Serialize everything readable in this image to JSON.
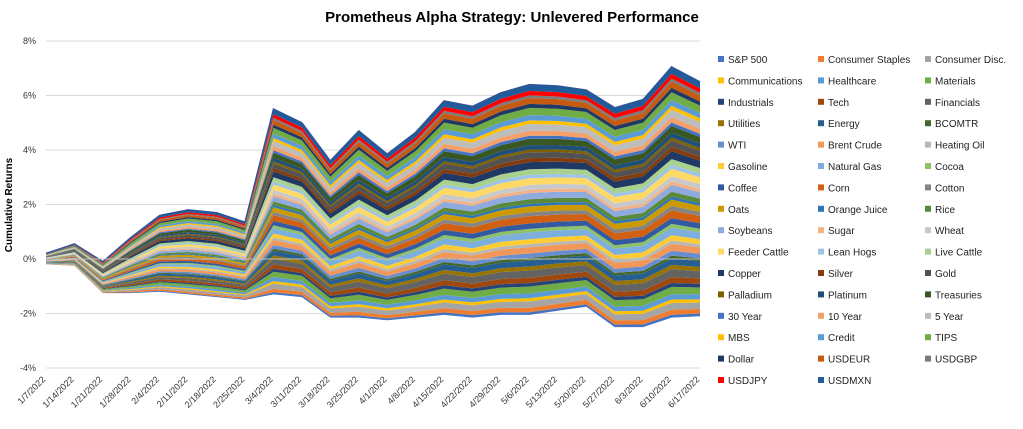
{
  "chart_data": {
    "type": "area",
    "title": "Prometheus Alpha Strategy: Unlevered Performance",
    "xlabel": "",
    "ylabel": "Cumulative Returns",
    "ylim": [
      -4,
      8
    ],
    "yticks": [
      "-4%",
      "-2%",
      "0%",
      "2%",
      "4%",
      "6%",
      "8%"
    ],
    "grid": true,
    "legend_position": "right",
    "x": [
      "1/7/2022",
      "1/14/2022",
      "1/21/2022",
      "1/28/2022",
      "2/4/2022",
      "2/11/2022",
      "2/18/2022",
      "2/25/2022",
      "3/4/2022",
      "3/11/2022",
      "3/18/2022",
      "3/25/2022",
      "4/1/2022",
      "4/8/2022",
      "4/15/2022",
      "4/22/2022",
      "4/29/2022",
      "5/6/2022",
      "5/13/2022",
      "5/20/2022",
      "5/27/2022",
      "6/3/2022",
      "6/10/2022",
      "6/17/2022"
    ],
    "total": [
      0.2,
      0.55,
      -0.1,
      0.8,
      1.6,
      1.8,
      1.7,
      1.35,
      5.5,
      5.0,
      3.6,
      4.7,
      3.85,
      4.65,
      5.8,
      5.6,
      6.1,
      6.4,
      6.35,
      6.2,
      5.55,
      5.85,
      7.05,
      6.5
    ],
    "min": [
      -0.2,
      -0.25,
      -1.25,
      -1.25,
      -1.2,
      -1.3,
      -1.4,
      -1.5,
      -1.3,
      -1.4,
      -2.15,
      -2.15,
      -2.25,
      -2.15,
      -2.05,
      -2.15,
      -2.05,
      -2.05,
      -1.9,
      -1.75,
      -2.5,
      -2.5,
      -2.15,
      -2.1
    ],
    "series_names": [
      "S&P 500",
      "Consumer Staples",
      "Consumer Disc.",
      "Communications",
      "Healthcare",
      "Materials",
      "Industrials",
      "Tech",
      "Financials",
      "Utilities",
      "Energy",
      "BCOMTR",
      "WTI",
      "Brent Crude",
      "Heating Oil",
      "Gasoline",
      "Natural Gas",
      "Cocoa",
      "Coffee",
      "Corn",
      "Cotton",
      "Oats",
      "Orange Juice",
      "Rice",
      "Soybeans",
      "Sugar",
      "Wheat",
      "Feeder Cattle",
      "Lean Hogs",
      "Live Cattle",
      "Copper",
      "Silver",
      "Gold",
      "Palladium",
      "Platinum",
      "Treasuries",
      "30 Year",
      "10 Year",
      "5 Year",
      "MBS",
      "Credit",
      "TIPS",
      "Dollar",
      "USDEUR",
      "USDGBP",
      "USDJPY",
      "USDMXN"
    ],
    "colors": {
      "S&P 500": "#4472c4",
      "Consumer Staples": "#ed7d31",
      "Consumer Disc.": "#a5a5a5",
      "Communications": "#ffc000",
      "Healthcare": "#5b9bd5",
      "Materials": "#70ad47",
      "Industrials": "#264478",
      "Tech": "#9e480e",
      "Financials": "#636363",
      "Utilities": "#997300",
      "Energy": "#255e91",
      "BCOMTR": "#43682b",
      "WTI": "#698ed0",
      "Brent Crude": "#f1975a",
      "Heating Oil": "#b7b7b7",
      "Gasoline": "#ffcd33",
      "Natural Gas": "#7cafdd",
      "Cocoa": "#8cc168",
      "Coffee": "#335aa1",
      "Corn": "#d26012",
      "Cotton": "#848484",
      "Oats": "#cc9a00",
      "Orange Juice": "#2e75b6",
      "Rice": "#5a8a39",
      "Soybeans": "#8faadc",
      "Sugar": "#f4b183",
      "Wheat": "#c9c9c9",
      "Feeder Cattle": "#ffd966",
      "Lean Hogs": "#9dc3e6",
      "Live Cattle": "#a9d18e",
      "Copper": "#203864",
      "Silver": "#843c0c",
      "Gold": "#525252",
      "Palladium": "#7f6000",
      "Platinum": "#1f4e79",
      "Treasuries": "#385723",
      "30 Year": "#4472c4",
      "10 Year": "#f4a06a",
      "5 Year": "#bdbdbd",
      "MBS": "#ffc000",
      "Credit": "#5b9bd5",
      "TIPS": "#70ad47",
      "Dollar": "#203864",
      "USDEUR": "#c55a11",
      "USDGBP": "#7b7b7b",
      "USDJPY": "#ff0000",
      "USDMXN": "#1f5c99"
    }
  }
}
